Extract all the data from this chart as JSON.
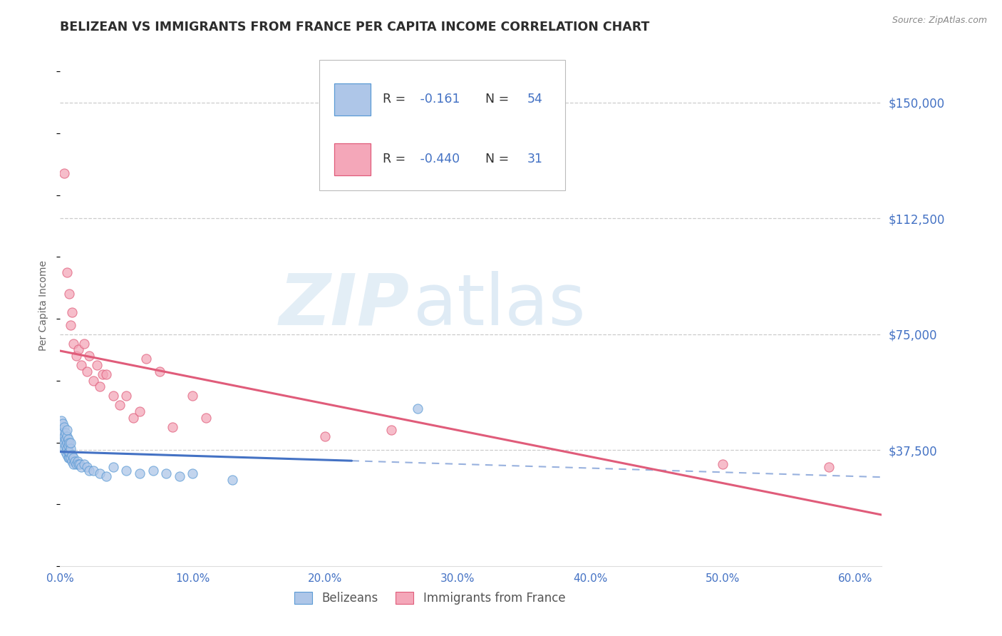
{
  "title": "BELIZEAN VS IMMIGRANTS FROM FRANCE PER CAPITA INCOME CORRELATION CHART",
  "source_text": "Source: ZipAtlas.com",
  "ylabel": "Per Capita Income",
  "xlim": [
    0.0,
    0.62
  ],
  "ylim": [
    0,
    168750
  ],
  "yticks": [
    37500,
    75000,
    112500,
    150000
  ],
  "ytick_labels": [
    "$37,500",
    "$75,000",
    "$112,500",
    "$150,000"
  ],
  "xtick_vals": [
    0.0,
    0.1,
    0.2,
    0.3,
    0.4,
    0.5,
    0.6
  ],
  "xtick_labels": [
    "0.0%",
    "10.0%",
    "20.0%",
    "30.0%",
    "40.0%",
    "50.0%",
    "60.0%"
  ],
  "background_color": "#ffffff",
  "grid_color": "#cccccc",
  "title_color": "#2d2d2d",
  "tick_color": "#4472c4",
  "watermark_line1": "ZIP",
  "watermark_line2": "atlas",
  "legend_R1": "-0.161",
  "legend_N1": "54",
  "legend_R2": "-0.440",
  "legend_N2": "31",
  "belizean_face_color": "#aec6e8",
  "belizean_edge_color": "#5b9bd5",
  "france_face_color": "#f4a7b9",
  "france_edge_color": "#e05c7a",
  "belizean_line_color": "#4472c4",
  "france_line_color": "#e05c7a",
  "belizean_x": [
    0.001,
    0.001,
    0.001,
    0.002,
    0.002,
    0.002,
    0.003,
    0.003,
    0.003,
    0.003,
    0.004,
    0.004,
    0.004,
    0.004,
    0.005,
    0.005,
    0.005,
    0.005,
    0.005,
    0.006,
    0.006,
    0.006,
    0.006,
    0.007,
    0.007,
    0.007,
    0.008,
    0.008,
    0.008,
    0.009,
    0.009,
    0.01,
    0.01,
    0.011,
    0.012,
    0.013,
    0.014,
    0.015,
    0.016,
    0.018,
    0.02,
    0.022,
    0.025,
    0.03,
    0.035,
    0.04,
    0.05,
    0.06,
    0.07,
    0.08,
    0.09,
    0.1,
    0.13,
    0.27
  ],
  "belizean_y": [
    42000,
    44000,
    47000,
    41000,
    43000,
    46000,
    38000,
    40000,
    42000,
    45000,
    37000,
    39000,
    41000,
    43000,
    36000,
    38000,
    40000,
    42000,
    44000,
    35000,
    37000,
    39000,
    41000,
    35000,
    37000,
    40000,
    35000,
    38000,
    40000,
    34000,
    36000,
    33000,
    35000,
    34000,
    33000,
    34000,
    33000,
    33000,
    32000,
    33000,
    32000,
    31000,
    31000,
    30000,
    29000,
    32000,
    31000,
    30000,
    31000,
    30000,
    29000,
    30000,
    28000,
    51000
  ],
  "france_x": [
    0.003,
    0.005,
    0.007,
    0.008,
    0.009,
    0.01,
    0.012,
    0.014,
    0.016,
    0.018,
    0.02,
    0.022,
    0.025,
    0.028,
    0.03,
    0.032,
    0.035,
    0.04,
    0.045,
    0.05,
    0.055,
    0.06,
    0.065,
    0.075,
    0.085,
    0.1,
    0.11,
    0.2,
    0.25,
    0.5,
    0.58
  ],
  "france_y": [
    127000,
    95000,
    88000,
    78000,
    82000,
    72000,
    68000,
    70000,
    65000,
    72000,
    63000,
    68000,
    60000,
    65000,
    58000,
    62000,
    62000,
    55000,
    52000,
    55000,
    48000,
    50000,
    67000,
    63000,
    45000,
    55000,
    48000,
    42000,
    44000,
    33000,
    32000
  ]
}
